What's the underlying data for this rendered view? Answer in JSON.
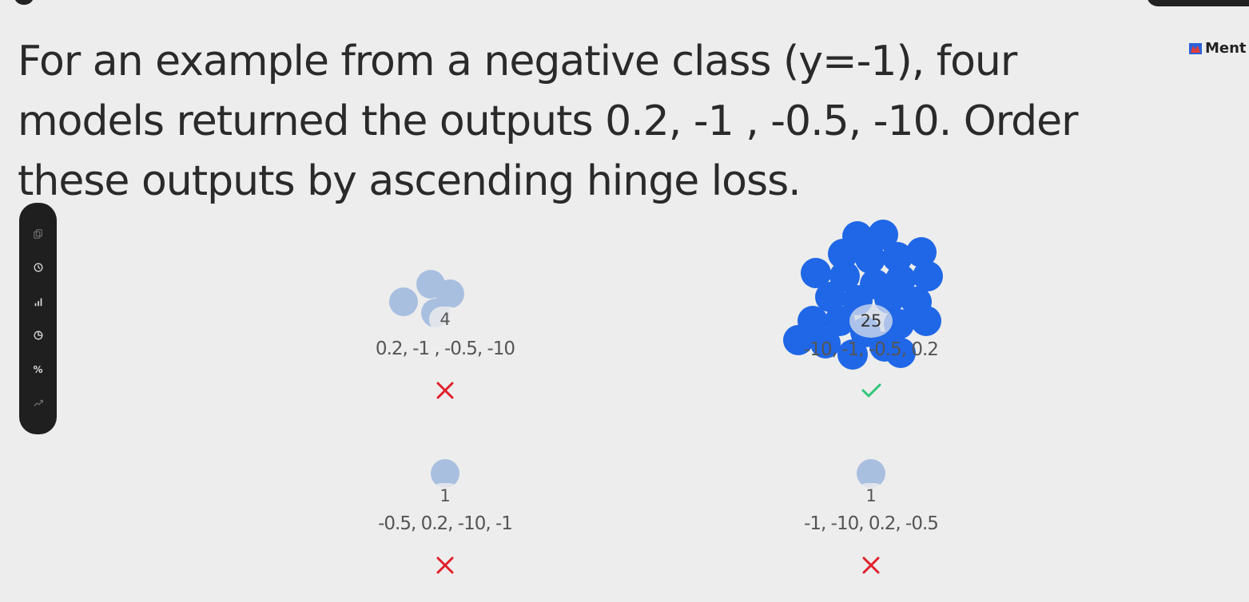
{
  "brand": {
    "name": "Ment"
  },
  "question": {
    "text": "For an example from a negative class (y=-1), four models returned the outputs 0.2, -1 , -0.5, -10. Order these outputs by ascending hinge loss."
  },
  "toolbar": {
    "icons": [
      "copy-icon",
      "timer-icon",
      "bar-chart-icon",
      "pie-chart-icon",
      "percent-icon",
      "trend-icon"
    ],
    "percent_label": "%"
  },
  "options": [
    {
      "count": "4",
      "answer": "0.2, -1 , -0.5, -10",
      "result": "incorrect"
    },
    {
      "count": "25",
      "answer": "-10, -1, -0.5, 0.2",
      "result": "correct"
    },
    {
      "count": "1",
      "answer": "-0.5, 0.2, -10, -1",
      "result": "incorrect"
    },
    {
      "count": "1",
      "answer": "-1, -10, 0.2, -0.5",
      "result": "incorrect"
    }
  ],
  "colors": {
    "background": "#ededed",
    "toolbar": "#1f1f1f",
    "vote_light": "#a9bfe0",
    "vote_strong": "#1f67e6",
    "correct": "#2fc77a",
    "incorrect": "#e0202a"
  }
}
